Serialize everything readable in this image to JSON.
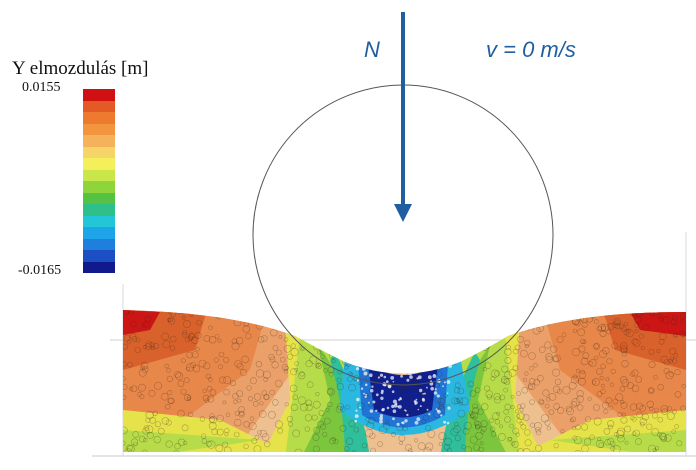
{
  "legend": {
    "title": "Y elmozdulás [m]",
    "max_label": "0.0155",
    "min_label": "-0.0165",
    "max_value": 0.0155,
    "min_value": -0.0165,
    "colors": [
      "#d11111",
      "#e45a24",
      "#ee7a30",
      "#f2953e",
      "#f6b25a",
      "#f7d46a",
      "#f5f05a",
      "#c9e64a",
      "#8fd43a",
      "#55c244",
      "#2fbf8a",
      "#22c6d6",
      "#1ea4e8",
      "#1f7fdc",
      "#1c4fc4",
      "#101a8c"
    ]
  },
  "load": {
    "force_label": "N",
    "velocity_label": "v = 0 m/s",
    "arrow_color": "#1f5fa0"
  },
  "scene": {
    "soil_palette": {
      "red": "#cc1515",
      "dark_orange": "#d9622c",
      "orange": "#e8874a",
      "light_orange": "#eba06a",
      "peach": "#eec08f",
      "yellow": "#e6e24a",
      "yellow_green": "#b7dc4a",
      "green": "#7cc63e",
      "teal": "#2fbf9c",
      "cyan": "#2ab8e0",
      "blue": "#1f74d6",
      "dark_blue": "#0f1f8e"
    }
  }
}
